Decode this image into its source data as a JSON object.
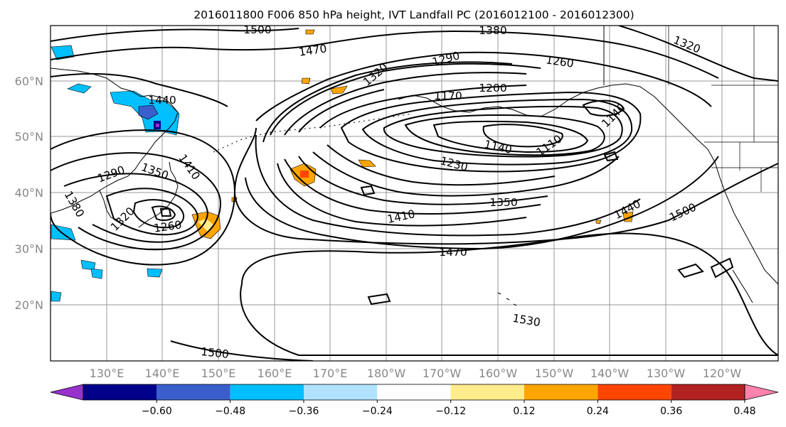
{
  "title": "2016011800 F006 850 hPa height, IVT Landfall PC (2016012100 - 2016012300)",
  "map": {
    "lon_labels": [
      "130°E",
      "140°E",
      "150°E",
      "160°E",
      "170°E",
      "180°W",
      "170°W",
      "160°W",
      "150°W",
      "140°W",
      "130°W",
      "120°W"
    ],
    "lat_labels": [
      "60°N",
      "50°N",
      "40°N",
      "30°N",
      "20°N"
    ],
    "gridlines": true
  },
  "contours": {
    "variable": "850 hPa height",
    "labels": [
      "1500",
      "1380",
      "1470",
      "1320",
      "1290",
      "1260",
      "1200",
      "1170",
      "1440",
      "1410",
      "1350",
      "1290",
      "1320",
      "1380",
      "1140",
      "1110",
      "1230",
      "1350",
      "1410",
      "1440",
      "1500",
      "1260",
      "1320",
      "1470",
      "1530",
      "1500",
      "1140"
    ]
  },
  "colorbar": {
    "ticks": [
      "−0.60",
      "−0.48",
      "−0.36",
      "−0.24",
      "−0.12",
      "0.12",
      "0.24",
      "0.36",
      "0.48",
      "0.60"
    ],
    "colors": [
      "#9932cc",
      "#00008b",
      "#3a5fcd",
      "#00bfff",
      "#b0e2ff",
      "#ffffff",
      "#ffec8b",
      "#ffa500",
      "#ff4500",
      "#b22222",
      "#ff82ab"
    ]
  }
}
